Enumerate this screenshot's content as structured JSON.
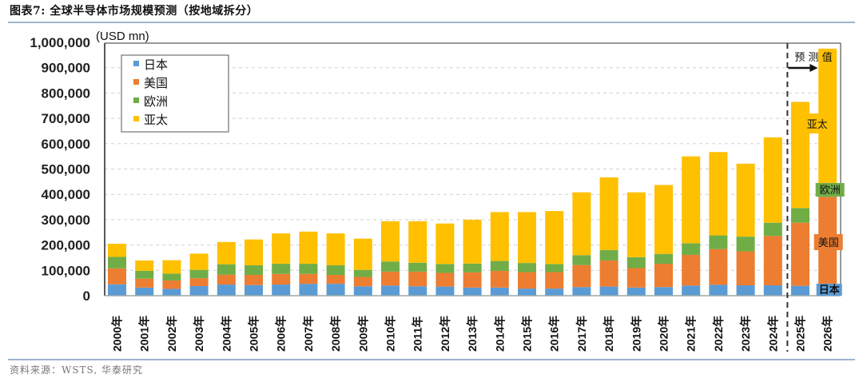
{
  "figure": {
    "title": "图表7:  全球半导体市场规模预测（按地域拆分）",
    "source": "资料来源：WSTS, 华泰研究"
  },
  "chart_data": {
    "type": "bar",
    "stacked": true,
    "title": "全球半导体市场规模预测（按地域拆分）",
    "unit_label": "(USD mn)",
    "xlabel": "",
    "ylabel": "(USD mn)",
    "ylim": [
      0,
      1000000
    ],
    "yticks": [
      0,
      100000,
      200000,
      300000,
      400000,
      500000,
      600000,
      700000,
      800000,
      900000,
      1000000
    ],
    "ytick_labels": [
      "0",
      "100,000",
      "200,000",
      "300,000",
      "400,000",
      "500,000",
      "600,000",
      "700,000",
      "800,000",
      "900,000",
      "1,000,000"
    ],
    "grid": true,
    "legend_position": "top-left",
    "categories": [
      "2000年",
      "2001年",
      "2002年",
      "2003年",
      "2004年",
      "2005年",
      "2006年",
      "2007年",
      "2008年",
      "2009年",
      "2010年",
      "2011年",
      "2012年",
      "2013年",
      "2014年",
      "2015年",
      "2016年",
      "2017年",
      "2018年",
      "2019年",
      "2020年",
      "2021年",
      "2022年",
      "2023年",
      "2024年",
      "2025年",
      "2026年"
    ],
    "series": [
      {
        "name": "日本",
        "color": "#5b9bd5",
        "values": [
          45000,
          32000,
          27000,
          38000,
          44000,
          42000,
          44000,
          47000,
          47000,
          37000,
          40000,
          37000,
          36000,
          32000,
          32000,
          28000,
          28000,
          34000,
          36000,
          32000,
          34000,
          40000,
          43000,
          41000,
          41000,
          39000,
          41000
        ]
      },
      {
        "name": "美国",
        "color": "#ed7d31",
        "values": [
          63000,
          35000,
          33000,
          31000,
          39000,
          40000,
          42000,
          39000,
          35000,
          37000,
          55000,
          58000,
          54000,
          60000,
          66000,
          65000,
          65000,
          87000,
          103000,
          77000,
          92000,
          121000,
          141000,
          134000,
          195000,
          249000,
          349000
        ]
      },
      {
        "name": "欧洲",
        "color": "#70ad47",
        "values": [
          45000,
          31000,
          27000,
          33000,
          41000,
          38000,
          40000,
          40000,
          38000,
          28000,
          40000,
          35000,
          35000,
          35000,
          39000,
          36000,
          32000,
          39000,
          41000,
          43000,
          39000,
          46000,
          54000,
          58000,
          52000,
          58000,
          55000
        ]
      },
      {
        "name": "亚太",
        "color": "#ffc000",
        "values": [
          52000,
          41000,
          53000,
          64000,
          88000,
          102000,
          120000,
          127000,
          126000,
          123000,
          159000,
          164000,
          160000,
          173000,
          193000,
          201000,
          209000,
          248000,
          287000,
          256000,
          272000,
          343000,
          329000,
          288000,
          337000,
          419000,
          530000
        ]
      }
    ],
    "totals": [
      205000,
      139000,
      140000,
      166000,
      212000,
      222000,
      246000,
      253000,
      246000,
      225000,
      294000,
      294000,
      285000,
      300000,
      330000,
      330000,
      334000,
      408000,
      467000,
      408000,
      437000,
      550000,
      567000,
      521000,
      625000,
      765000,
      975000
    ],
    "forecast_start": "2025年",
    "annotations": {
      "forecast_label": "预 测 值",
      "bar_2026_labels": [
        "亚太",
        "欧洲",
        "美国",
        "日本"
      ]
    }
  }
}
